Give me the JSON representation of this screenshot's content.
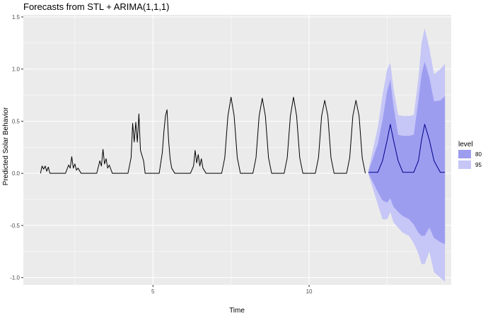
{
  "chart_data": {
    "type": "line",
    "title": "Forecasts from STL +  ARIMA(1,1,1)",
    "xlabel": "Time",
    "ylabel": "Predicted Solar Behavior",
    "xlim": [
      0.85,
      14.55
    ],
    "ylim": [
      -1.07,
      1.52
    ],
    "x_ticks": [
      5,
      10
    ],
    "y_ticks": [
      -1.0,
      -0.5,
      0.0,
      0.5,
      1.0,
      1.5
    ],
    "y_tick_labels": [
      "-1.0",
      "-0.5",
      "0.0",
      "0.5",
      "1.0",
      "1.5"
    ],
    "grid": true,
    "colors": {
      "panel": "#ebebeb",
      "grid": "#ffffff",
      "series": "#000000",
      "forecast": "#00008b",
      "level_80": "#9d9df0",
      "level_95": "#c6c6f7"
    },
    "legend": {
      "title": "level",
      "position": "right",
      "entries": [
        "80",
        "95"
      ]
    },
    "series": [
      {
        "kind": "observed",
        "x": [
          1.4,
          1.45,
          1.5,
          1.55,
          1.6,
          1.65,
          1.7,
          2.2,
          2.3,
          2.35,
          2.4,
          2.45,
          2.5,
          2.55,
          2.6,
          2.7,
          3.2,
          3.3,
          3.35,
          3.4,
          3.45,
          3.5,
          3.55,
          3.6,
          3.7,
          4.2,
          4.3,
          4.35,
          4.4,
          4.45,
          4.5,
          4.55,
          4.6,
          4.7,
          4.75,
          5.2,
          5.3,
          5.35,
          5.4,
          5.45,
          5.5,
          5.55,
          5.6,
          5.7,
          6.2,
          6.3,
          6.35,
          6.4,
          6.45,
          6.5,
          6.55,
          6.6,
          6.7,
          7.2,
          7.3,
          7.4,
          7.5,
          7.6,
          7.7,
          7.8,
          8.2,
          8.3,
          8.4,
          8.5,
          8.6,
          8.7,
          8.8,
          9.2,
          9.3,
          9.4,
          9.5,
          9.6,
          9.7,
          9.8,
          10.2,
          10.3,
          10.4,
          10.5,
          10.6,
          10.7,
          10.8,
          11.2,
          11.3,
          11.4,
          11.5,
          11.6,
          11.7,
          11.8
        ],
        "y": [
          0.0,
          0.07,
          0.04,
          0.07,
          0.02,
          0.06,
          0.0,
          0.0,
          0.08,
          0.05,
          0.16,
          0.05,
          0.09,
          0.03,
          0.05,
          0.0,
          0.0,
          0.12,
          0.07,
          0.23,
          0.09,
          0.14,
          0.05,
          0.08,
          0.0,
          0.0,
          0.15,
          0.48,
          0.3,
          0.49,
          0.3,
          0.57,
          0.22,
          0.12,
          0.0,
          0.0,
          0.2,
          0.4,
          0.55,
          0.61,
          0.32,
          0.14,
          0.05,
          0.0,
          0.0,
          0.07,
          0.22,
          0.1,
          0.18,
          0.07,
          0.14,
          0.05,
          0.0,
          0.0,
          0.15,
          0.55,
          0.73,
          0.55,
          0.15,
          0.0,
          0.0,
          0.15,
          0.55,
          0.72,
          0.55,
          0.15,
          0.0,
          0.0,
          0.15,
          0.55,
          0.73,
          0.55,
          0.15,
          0.0,
          0.0,
          0.15,
          0.55,
          0.7,
          0.55,
          0.15,
          0.0,
          0.0,
          0.15,
          0.55,
          0.7,
          0.55,
          0.15,
          0.0
        ]
      },
      {
        "kind": "forecast",
        "x": [
          11.9,
          12.2,
          12.35,
          12.5,
          12.6,
          12.7,
          12.85,
          13.0,
          13.2,
          13.35,
          13.5,
          13.6,
          13.7,
          13.85,
          14.0,
          14.2,
          14.35
        ],
        "y": [
          0.01,
          0.01,
          0.12,
          0.32,
          0.47,
          0.32,
          0.12,
          0.01,
          0.01,
          0.01,
          0.12,
          0.32,
          0.47,
          0.32,
          0.12,
          0.01,
          0.01
        ]
      }
    ],
    "intervals": [
      {
        "level": "95",
        "x": [
          11.9,
          12.2,
          12.35,
          12.5,
          12.6,
          12.7,
          12.85,
          13.0,
          13.2,
          13.35,
          13.5,
          13.6,
          13.7,
          13.85,
          14.0,
          14.2,
          14.35
        ],
        "lower": [
          -0.01,
          -0.3,
          -0.44,
          -0.44,
          -0.37,
          -0.47,
          -0.52,
          -0.57,
          -0.6,
          -0.67,
          -0.77,
          -0.87,
          -0.87,
          -0.75,
          -0.95,
          -1.0,
          -1.04
        ],
        "upper": [
          0.03,
          0.44,
          0.75,
          1.0,
          1.06,
          0.82,
          0.56,
          0.55,
          0.55,
          0.56,
          0.91,
          1.25,
          1.39,
          1.2,
          0.95,
          1.0,
          1.05
        ]
      },
      {
        "level": "80",
        "x": [
          11.9,
          12.2,
          12.35,
          12.5,
          12.6,
          12.7,
          12.85,
          13.0,
          13.2,
          13.35,
          13.5,
          13.6,
          13.7,
          13.85,
          14.0,
          14.2,
          14.35
        ],
        "lower": [
          0.0,
          -0.18,
          -0.26,
          -0.28,
          -0.24,
          -0.32,
          -0.37,
          -0.41,
          -0.44,
          -0.49,
          -0.57,
          -0.6,
          -0.6,
          -0.52,
          -0.62,
          -0.66,
          -0.68
        ],
        "upper": [
          0.02,
          0.28,
          0.51,
          0.79,
          0.9,
          0.65,
          0.37,
          0.36,
          0.36,
          0.37,
          0.7,
          0.95,
          1.07,
          0.92,
          0.69,
          0.7,
          0.74
        ]
      }
    ]
  }
}
